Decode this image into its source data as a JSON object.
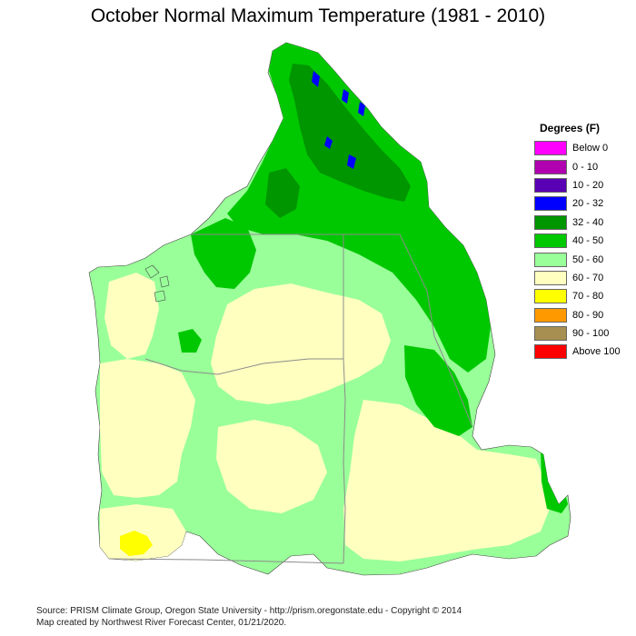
{
  "title": "October Normal Maximum Temperature (1981 - 2010)",
  "legend": {
    "title": "Degrees (F)",
    "items": [
      {
        "label": "Below 0",
        "color": "#ff00ff"
      },
      {
        "label": "0 - 10",
        "color": "#b000b0"
      },
      {
        "label": "10 - 20",
        "color": "#5a00b4"
      },
      {
        "label": "20 - 32",
        "color": "#0000ff"
      },
      {
        "label": "32 - 40",
        "color": "#009600"
      },
      {
        "label": "40 - 50",
        "color": "#00c800"
      },
      {
        "label": "50 - 60",
        "color": "#99ff99"
      },
      {
        "label": "60 - 70",
        "color": "#ffffc0"
      },
      {
        "label": "70 - 80",
        "color": "#ffff00"
      },
      {
        "label": "80 - 90",
        "color": "#ff9900"
      },
      {
        "label": "90 - 100",
        "color": "#a68f50"
      },
      {
        "label": "Above 100",
        "color": "#ff0000"
      }
    ]
  },
  "footer": {
    "line1": "Source: PRISM Climate Group, Oregon State University - http://prism.oregonstate.edu - Copyright © 2014",
    "line2": "Map created by Northwest River Forecast Center, 01/21/2020."
  },
  "colors": {
    "range_60_70": "#ffffc0",
    "range_50_60": "#99ff99",
    "range_40_50": "#00c800",
    "range_32_40": "#009600",
    "range_20_32": "#0000ff",
    "range_70_80": "#ffff00",
    "border": "#8c8c8c"
  }
}
